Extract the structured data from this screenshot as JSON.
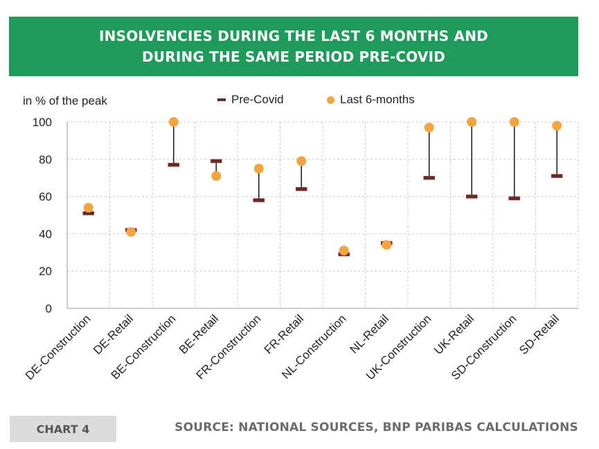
{
  "header": {
    "title_line1": "INSOLVENCIES DURING THE LAST 6 MONTHS AND",
    "title_line2": "DURING THE SAME PERIOD PRE-COVID"
  },
  "footer": {
    "chart_label": "CHART 4",
    "source": "SOURCE: NATIONAL SOURCES, BNP PARIBAS CALCULATIONS"
  },
  "colors": {
    "banner": "#1e9a5a",
    "precovid": "#5a2d2f",
    "precovid_edge": "#c0392b",
    "last6": "#f5a442"
  },
  "chart_data": {
    "type": "scatter",
    "title": "INSOLVENCIES DURING THE LAST 6 MONTHS AND DURING THE SAME PERIOD PRE-COVID",
    "ylabel": "in % of the peak",
    "xlabel": "",
    "ylim": [
      0,
      100
    ],
    "yticks": [
      0,
      20,
      40,
      60,
      80,
      100
    ],
    "grid": true,
    "legend_position": "top",
    "categories": [
      "DE-Construction",
      "DE-Retail",
      "BE-Construction",
      "BE-Retail",
      "FR-Construction",
      "FR-Retail",
      "NL-Construction",
      "NL-Retail",
      "UK-Construction",
      "UK-Retail",
      "SD-Construction",
      "SD-Retail"
    ],
    "series": [
      {
        "name": "Pre-Covid",
        "values": [
          51,
          42,
          77,
          79,
          58,
          64,
          29,
          35,
          70,
          60,
          59,
          71
        ]
      },
      {
        "name": "Last 6-months",
        "values": [
          54,
          41,
          100,
          71,
          75,
          79,
          31,
          34,
          97,
          100,
          100,
          98
        ]
      }
    ]
  }
}
